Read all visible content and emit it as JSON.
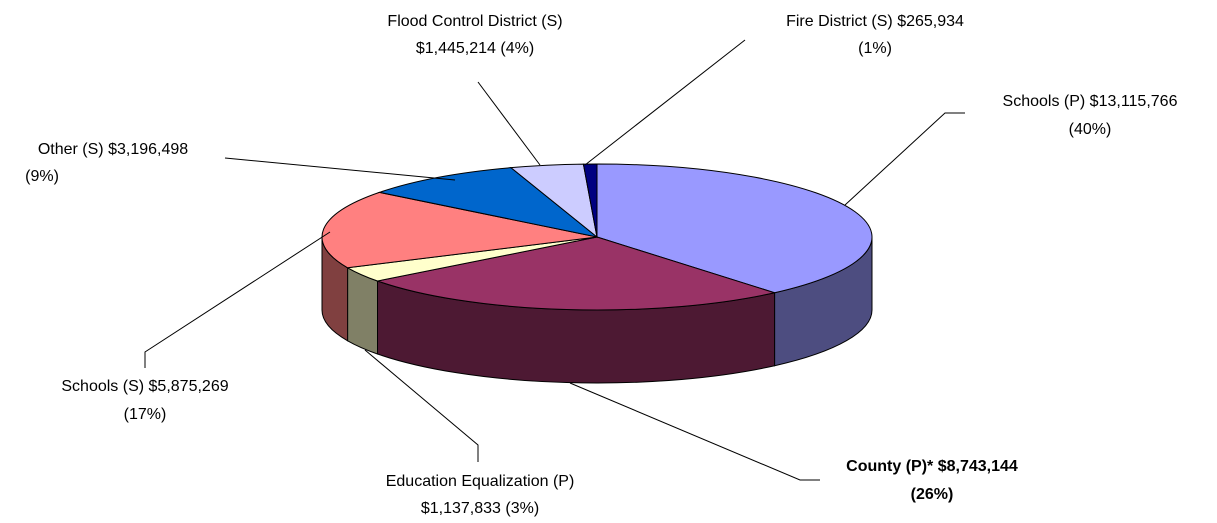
{
  "chart_data": {
    "type": "pie3d",
    "categories": [
      "Schools (P)",
      "County (P)*",
      "Education Equalization (P)",
      "Schools (S)",
      "Other (S)",
      "Flood Control District (S)",
      "Fire District (S)"
    ],
    "values": [
      13115766,
      8743144,
      1137833,
      5875269,
      3196498,
      1445214,
      265934
    ],
    "value_labels": [
      "$13,115,766",
      "$8,743,144",
      "$1,137,833",
      "$5,875,269",
      "$3,196,498",
      "$1,445,214",
      "$265,934"
    ],
    "percent_labels": [
      "(40%)",
      "(26%)",
      "(3%)",
      "(17%)",
      "(9%)",
      "(4%)",
      "(1%)"
    ],
    "colors": [
      "#9999ff",
      "#993366",
      "#ffffcc",
      "#ff8080",
      "#0066cc",
      "#ccccff",
      "#000080"
    ],
    "side_colors": [
      "#4d4d80",
      "#4d1933",
      "#808066",
      "#804040",
      "#003366",
      "#666680",
      "#000040"
    ]
  }
}
